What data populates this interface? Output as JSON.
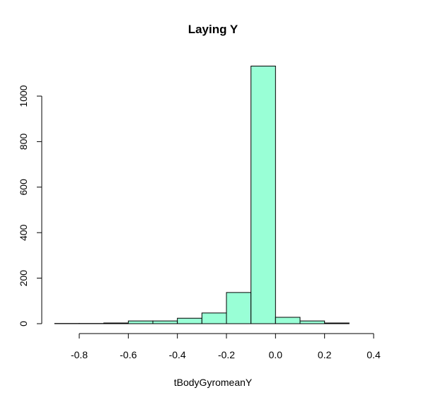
{
  "chart_data": {
    "type": "bar",
    "subtype": "histogram",
    "title": "Laying Y",
    "xlabel": "tBodyGyromeanY",
    "ylabel": "",
    "bar_color": "#99FFD6",
    "bin_edges": [
      -0.9,
      -0.8,
      -0.7,
      -0.6,
      -0.5,
      -0.4,
      -0.3,
      -0.2,
      -0.1,
      0.0,
      0.1,
      0.2,
      0.3
    ],
    "counts": [
      1,
      1,
      3,
      12,
      12,
      24,
      47,
      137,
      1132,
      28,
      12,
      3
    ],
    "xlim": [
      -0.8,
      0.4
    ],
    "ylim": [
      0,
      1132
    ],
    "x_ticks": [
      -0.8,
      -0.6,
      -0.4,
      -0.2,
      0.0,
      0.2,
      0.4
    ],
    "x_tick_labels": [
      "-0.8",
      "-0.6",
      "-0.4",
      "-0.2",
      "0.0",
      "0.2",
      "0.4"
    ],
    "y_ticks": [
      0,
      200,
      400,
      600,
      800,
      1000
    ],
    "y_tick_labels": [
      "0",
      "200",
      "400",
      "600",
      "800",
      "1000"
    ],
    "grid": false,
    "legend": "none"
  }
}
